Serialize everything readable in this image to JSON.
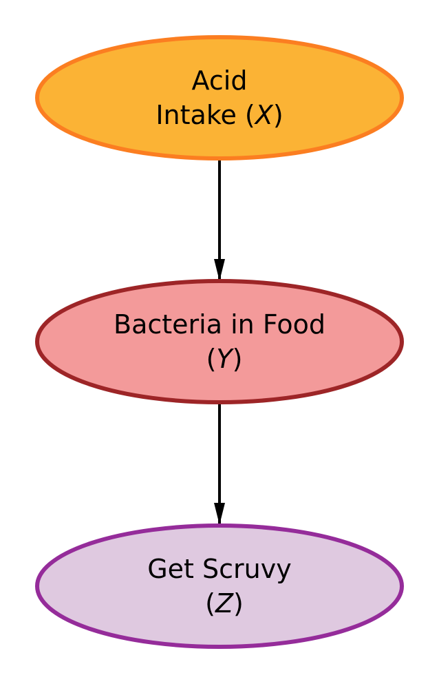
{
  "diagram": {
    "nodes": [
      {
        "id": "X",
        "line1": "Acid",
        "line2_prefix": "Intake (",
        "var": "X",
        "line2_suffix": ")",
        "fill": "#fbb335",
        "stroke": "#fb7e21"
      },
      {
        "id": "Y",
        "line1": "Bacteria in Food",
        "line2_prefix": "(",
        "var": "Y",
        "line2_suffix": ")",
        "fill": "#f39a9a",
        "stroke": "#9d2527"
      },
      {
        "id": "Z",
        "line1": "Get Scruvy",
        "line2_prefix": "(",
        "var": "Z",
        "line2_suffix": ")",
        "fill": "#dfc9e0",
        "stroke": "#952c9a"
      }
    ],
    "edges": [
      {
        "from": "X",
        "to": "Y",
        "color": "#000000"
      },
      {
        "from": "Y",
        "to": "Z",
        "color": "#000000"
      }
    ]
  }
}
